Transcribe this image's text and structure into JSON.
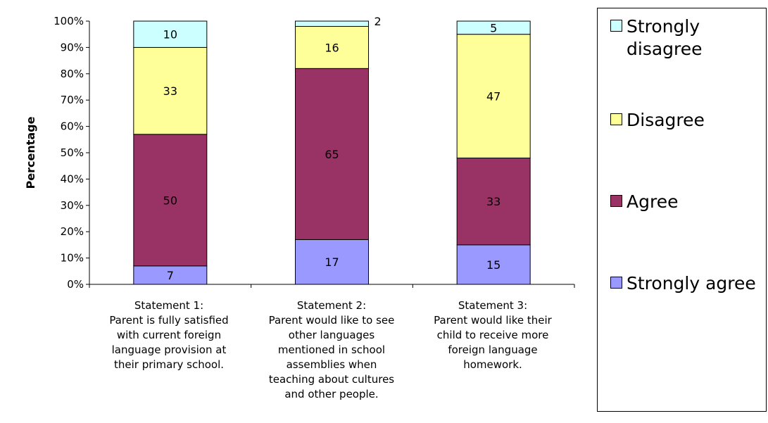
{
  "chart_data": {
    "type": "bar",
    "stacked": true,
    "percent": true,
    "ylabel": "Percentage",
    "xlabel": "",
    "ylim": [
      0,
      100
    ],
    "yticks": [
      "0%",
      "10%",
      "20%",
      "30%",
      "40%",
      "50%",
      "60%",
      "70%",
      "80%",
      "90%",
      "100%"
    ],
    "categories": [
      "Statement 1:\nParent is fully satisfied\nwith current foreign\nlanguage provision at\ntheir primary school.",
      "Statement 2:\nParent would like to see\nother languages\nmentioned in school\nassemblies when\nteaching about cultures\nand other people.",
      "Statement 3:\nParent would like their\nchild to receive more\nforeign language\nhomework."
    ],
    "series": [
      {
        "name": "Strongly agree",
        "color": "#9999FF",
        "values": [
          7,
          17,
          15
        ]
      },
      {
        "name": "Agree",
        "color": "#993366",
        "values": [
          50,
          65,
          33
        ]
      },
      {
        "name": "Disagree",
        "color": "#FFFF99",
        "values": [
          33,
          16,
          47
        ]
      },
      {
        "name": "Strongly disagree",
        "color": "#CCFFFF",
        "values": [
          10,
          2,
          5
        ]
      }
    ],
    "legend_position": "right",
    "grid": false
  }
}
